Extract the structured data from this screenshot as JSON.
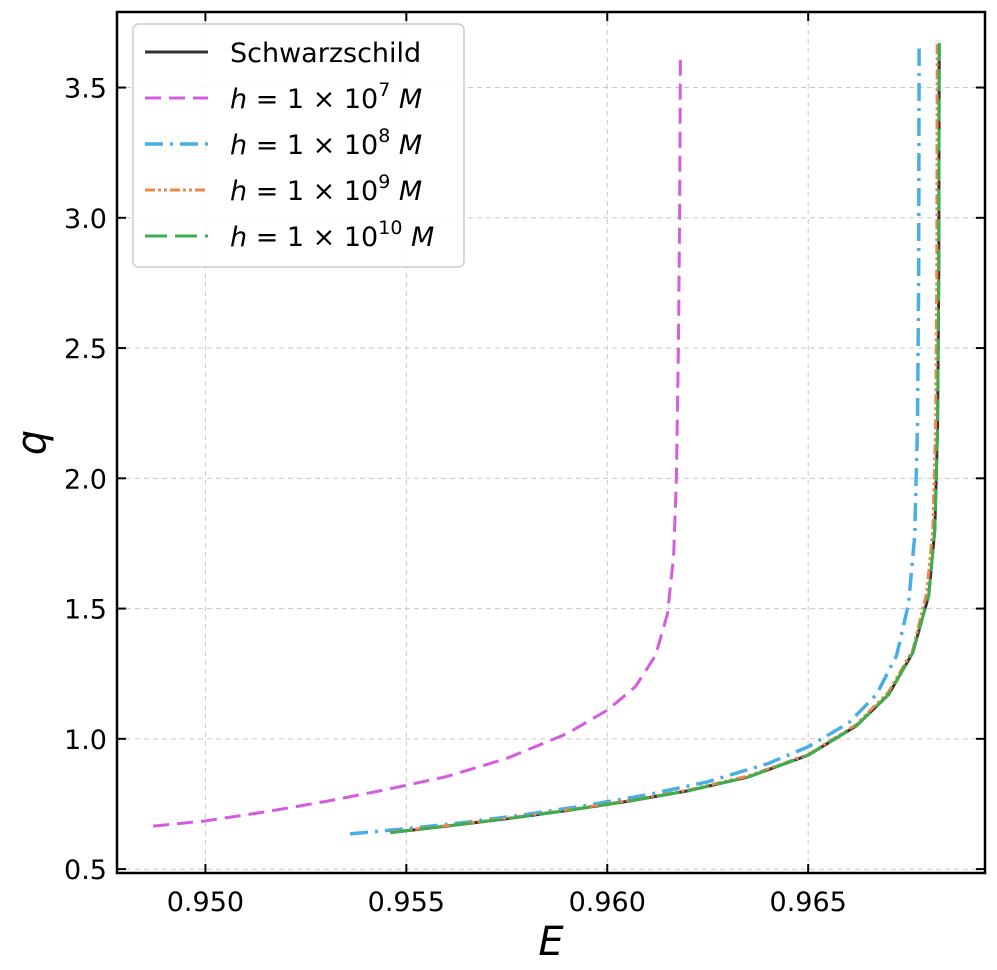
{
  "chart_data": {
    "type": "line",
    "xlabel": "E",
    "ylabel": "q",
    "xlim": [
      0.9478,
      0.9694
    ],
    "ylim": [
      0.485,
      3.79
    ],
    "x_ticks": [
      0.95,
      0.955,
      0.96,
      0.965
    ],
    "x_tick_labels": [
      "0.950",
      "0.955",
      "0.960",
      "0.965"
    ],
    "y_ticks": [
      0.5,
      1.0,
      1.5,
      2.0,
      2.5,
      3.0,
      3.5
    ],
    "y_tick_labels": [
      "0.5",
      "1.0",
      "1.5",
      "2.0",
      "2.5",
      "3.0",
      "3.5"
    ],
    "grid": true,
    "legend_position": "top-left",
    "series": [
      {
        "name": "Schwarzschild",
        "legend": {
          "pre": "Schwarzschild",
          "sup": "",
          "post": ""
        },
        "color": "#333333",
        "dash": "",
        "width": 3,
        "points": [
          [
            0.9546,
            0.64
          ],
          [
            0.956,
            0.665
          ],
          [
            0.9575,
            0.693
          ],
          [
            0.959,
            0.725
          ],
          [
            0.9605,
            0.76
          ],
          [
            0.962,
            0.8
          ],
          [
            0.9635,
            0.853
          ],
          [
            0.965,
            0.937
          ],
          [
            0.9662,
            1.05
          ],
          [
            0.967,
            1.17
          ],
          [
            0.9676,
            1.33
          ],
          [
            0.968,
            1.55
          ],
          [
            0.96815,
            1.8
          ],
          [
            0.96822,
            2.2
          ],
          [
            0.96825,
            2.8
          ],
          [
            0.96826,
            3.67
          ]
        ]
      },
      {
        "name": "h = 1 × 10^7 M",
        "legend": {
          "pre": "h = 1 × 10",
          "sup": "7",
          "post": " M"
        },
        "color": "#d45ce0",
        "dash": "16,8",
        "width": 3,
        "points": [
          [
            0.9487,
            0.665
          ],
          [
            0.95,
            0.685
          ],
          [
            0.9515,
            0.72
          ],
          [
            0.953,
            0.76
          ],
          [
            0.9545,
            0.805
          ],
          [
            0.956,
            0.855
          ],
          [
            0.9575,
            0.925
          ],
          [
            0.959,
            1.02
          ],
          [
            0.96,
            1.11
          ],
          [
            0.9607,
            1.2
          ],
          [
            0.9612,
            1.32
          ],
          [
            0.9615,
            1.48
          ],
          [
            0.96165,
            1.7
          ],
          [
            0.96172,
            2.0
          ],
          [
            0.96177,
            2.5
          ],
          [
            0.9618,
            3.0
          ],
          [
            0.96182,
            3.61
          ]
        ]
      },
      {
        "name": "h = 1 × 10^8 M",
        "legend": {
          "pre": "h = 1 × 10",
          "sup": "8",
          "post": " M"
        },
        "color": "#4aaee6",
        "dash": "18,7,3,7",
        "width": 3.5,
        "points": [
          [
            0.9536,
            0.635
          ],
          [
            0.955,
            0.655
          ],
          [
            0.9565,
            0.68
          ],
          [
            0.958,
            0.71
          ],
          [
            0.9595,
            0.745
          ],
          [
            0.961,
            0.785
          ],
          [
            0.9625,
            0.835
          ],
          [
            0.964,
            0.905
          ],
          [
            0.965,
            0.97
          ],
          [
            0.966,
            1.06
          ],
          [
            0.9667,
            1.17
          ],
          [
            0.9672,
            1.32
          ],
          [
            0.9675,
            1.52
          ],
          [
            0.96765,
            1.78
          ],
          [
            0.96772,
            2.2
          ],
          [
            0.96775,
            2.8
          ],
          [
            0.96776,
            3.65
          ]
        ]
      },
      {
        "name": "h = 1 × 10^9 M",
        "legend": {
          "pre": "h = 1 × 10",
          "sup": "9",
          "post": " M"
        },
        "color": "#ef8548",
        "dash": "10,3,3,3,3,3",
        "width": 3,
        "points": [
          [
            0.9546,
            0.642
          ],
          [
            0.956,
            0.667
          ],
          [
            0.9575,
            0.695
          ],
          [
            0.959,
            0.727
          ],
          [
            0.9605,
            0.762
          ],
          [
            0.962,
            0.803
          ],
          [
            0.9635,
            0.857
          ],
          [
            0.965,
            0.94
          ],
          [
            0.9662,
            1.055
          ],
          [
            0.967,
            1.18
          ],
          [
            0.9676,
            1.34
          ],
          [
            0.96795,
            1.56
          ],
          [
            0.9681,
            1.8
          ],
          [
            0.96817,
            2.2
          ],
          [
            0.9682,
            2.8
          ],
          [
            0.96821,
            3.68
          ]
        ]
      },
      {
        "name": "h = 1 × 10^10 M",
        "legend": {
          "pre": "h = 1 × 10",
          "sup": "10",
          "post": " M"
        },
        "color": "#3dae50",
        "dash": "22,8",
        "width": 3,
        "points": [
          [
            0.9546,
            0.64
          ],
          [
            0.956,
            0.665
          ],
          [
            0.9575,
            0.693
          ],
          [
            0.959,
            0.725
          ],
          [
            0.9605,
            0.76
          ],
          [
            0.962,
            0.8
          ],
          [
            0.9635,
            0.853
          ],
          [
            0.965,
            0.937
          ],
          [
            0.9662,
            1.05
          ],
          [
            0.967,
            1.17
          ],
          [
            0.9676,
            1.33
          ],
          [
            0.968,
            1.55
          ],
          [
            0.96815,
            1.8
          ],
          [
            0.96822,
            2.2
          ],
          [
            0.96825,
            2.8
          ],
          [
            0.96826,
            3.67
          ]
        ]
      }
    ]
  }
}
